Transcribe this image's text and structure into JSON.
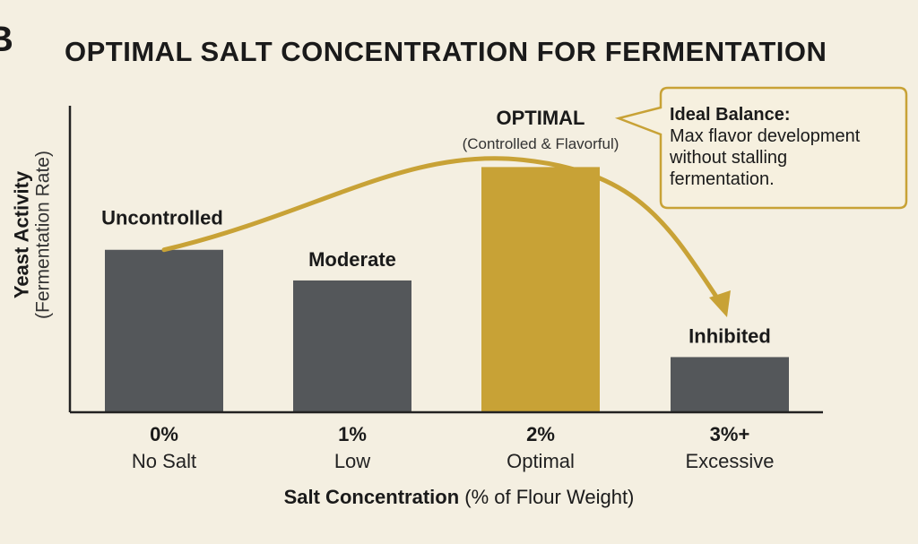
{
  "panel_letter": "B",
  "colors": {
    "background": "#f4efe1",
    "bar_default": "#54575a",
    "bar_highlight": "#c8a236",
    "curve": "#c8a236",
    "axis": "#222222"
  },
  "chart_data": {
    "type": "bar",
    "title": "OPTIMAL SALT CONCENTRATION FOR FERMENTATION",
    "ylabel": "Yeast Activity",
    "ylabel_sub": "(Fermentation Rate)",
    "xlabel": "Salt Concentration",
    "xlabel_sub": " (% of Flour Weight)",
    "categories": [
      "0%",
      "1%",
      "2%",
      "3%+"
    ],
    "category_sublabels": [
      "No Salt",
      "Low",
      "Optimal",
      "Excessive"
    ],
    "bar_labels": [
      "Uncontrolled",
      "Moderate",
      "OPTIMAL",
      "Inhibited"
    ],
    "optimal_sublabel": "(Controlled & Flavorful)",
    "values": [
      5.3,
      4.3,
      8.0,
      1.8
    ],
    "highlight_index": 2,
    "ylim": [
      0,
      10
    ],
    "grid": false,
    "trend_curve": true,
    "callout": {
      "title": "Ideal Balance:",
      "text": "Max flavor development without stalling fermentation."
    }
  }
}
